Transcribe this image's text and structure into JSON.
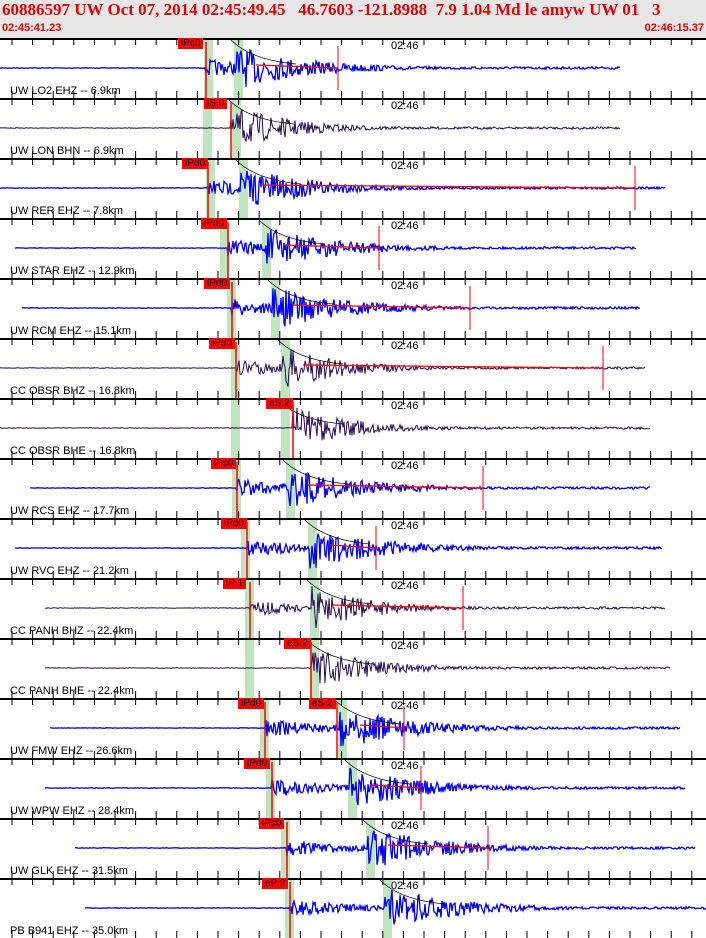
{
  "header": {
    "title": "60886597 UW Oct 07, 2014 02:45:49.45   46.7603 -121.8988  7.9 1.04 Md le amyw UW 01   3",
    "start_time": "02:45:41.23",
    "end_time": "02:46:15.37"
  },
  "time_mark": "02:46",
  "colors": {
    "vertical": "#0000ff",
    "broadband": "#2a0a5a",
    "pick": "#ff0000",
    "window": "#bfe5bf"
  },
  "traces": [
    {
      "label": "UW LO2 EHZ -- 6.9km",
      "picks": [
        "iPc0"
      ]
    },
    {
      "label": "UW LON BHN -- 6.9km",
      "picks": [
        "iS 0"
      ]
    },
    {
      "label": "UW RER EHZ -- 7.8km",
      "picks": [
        "iPd0"
      ]
    },
    {
      "label": "UW STAR EHZ -- 12.9km",
      "picks": [
        "iPd0"
      ]
    },
    {
      "label": "UW RCM EHZ -- 15.1km",
      "picks": [
        "iPd0"
      ]
    },
    {
      "label": "CC OBSR BHZ -- 16.8km",
      "picks": [
        "iPd0"
      ]
    },
    {
      "label": "CC OBSR BHE -- 16.8km",
      "picks": [
        "eS 2"
      ]
    },
    {
      "label": "UW RCS EHZ -- 17.7km",
      "picks": [
        "iPc0"
      ]
    },
    {
      "label": "UW RVC EHZ -- 21.2km",
      "picks": [
        "iPd0"
      ]
    },
    {
      "label": "CC PANH BHZ -- 22.4km",
      "picks": [
        "iP 1"
      ]
    },
    {
      "label": "CC PANH BHE -- 22.4km",
      "picks": [
        "eS 2"
      ]
    },
    {
      "label": "UW FMW EHZ -- 26.6km",
      "picks": [
        "iPd0",
        "eS 2"
      ]
    },
    {
      "label": "UW WPW EHZ -- 28.4km",
      "picks": [
        "iPd0"
      ]
    },
    {
      "label": "UW GLK EHZ -- 31.5km",
      "picks": [
        "iPc0"
      ]
    },
    {
      "label": "PB B941 EHZ -- 35.0km",
      "picks": [
        "eP 2"
      ]
    }
  ]
}
